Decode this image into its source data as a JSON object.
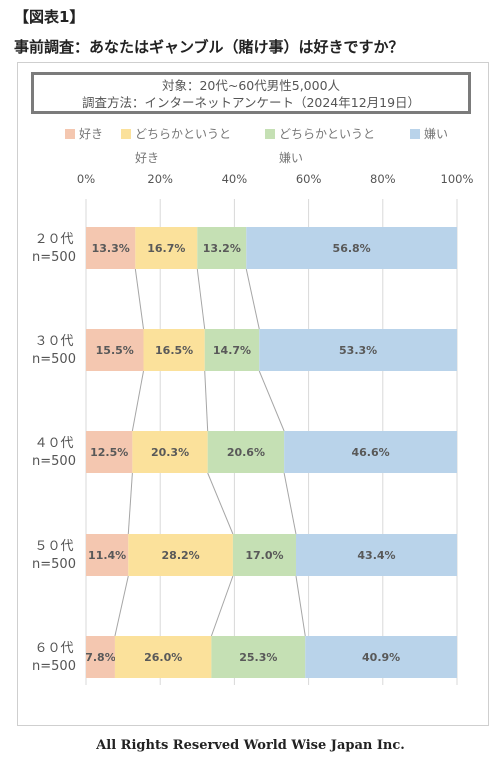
{
  "figure_label": "【図表1】",
  "question": "事前調査：あなたはギャンブル（賭け事）は好きですか？",
  "note": {
    "line1": "対象：20代~60代男性5,000人",
    "line2": "調査方法：インターネットアンケート（2024年12月19日）"
  },
  "legend": [
    {
      "line1": "好き",
      "line2": "",
      "color": "#f4c7b0"
    },
    {
      "line1": "どちらかというと",
      "line2": "好き",
      "color": "#fbe19b"
    },
    {
      "line1": "どちらかというと",
      "line2": "嫌い",
      "color": "#c5e0b4"
    },
    {
      "line1": "嫌い",
      "line2": "",
      "color": "#b9d3ea"
    }
  ],
  "chart_data": {
    "type": "bar",
    "orientation": "horizontal",
    "stacked": "percent",
    "categories": [
      "２０代\nn=500",
      "３０代\nn=500",
      "４０代\nn=500",
      "５０代\nn=500",
      "６０代\nn=500"
    ],
    "series": [
      {
        "name": "好き",
        "values": [
          13.3,
          15.5,
          12.5,
          11.4,
          7.8
        ],
        "color": "#f4c7b0"
      },
      {
        "name": "どちらかというと好き",
        "values": [
          16.7,
          16.5,
          20.3,
          28.2,
          26.0
        ],
        "color": "#fbe19b"
      },
      {
        "name": "どちらかというと嫌い",
        "values": [
          13.2,
          14.7,
          20.6,
          17.0,
          25.3
        ],
        "color": "#c5e0b4"
      },
      {
        "name": "嫌い",
        "values": [
          56.8,
          53.3,
          46.6,
          43.4,
          40.9
        ],
        "color": "#b9d3ea"
      }
    ],
    "x_ticks": [
      "0%",
      "20%",
      "40%",
      "60%",
      "80%",
      "100%"
    ],
    "xlim": [
      0,
      100
    ],
    "grid": true,
    "series_lines": true,
    "legend_position": "top"
  },
  "footer": "All Rights Reserved World Wise Japan Inc."
}
